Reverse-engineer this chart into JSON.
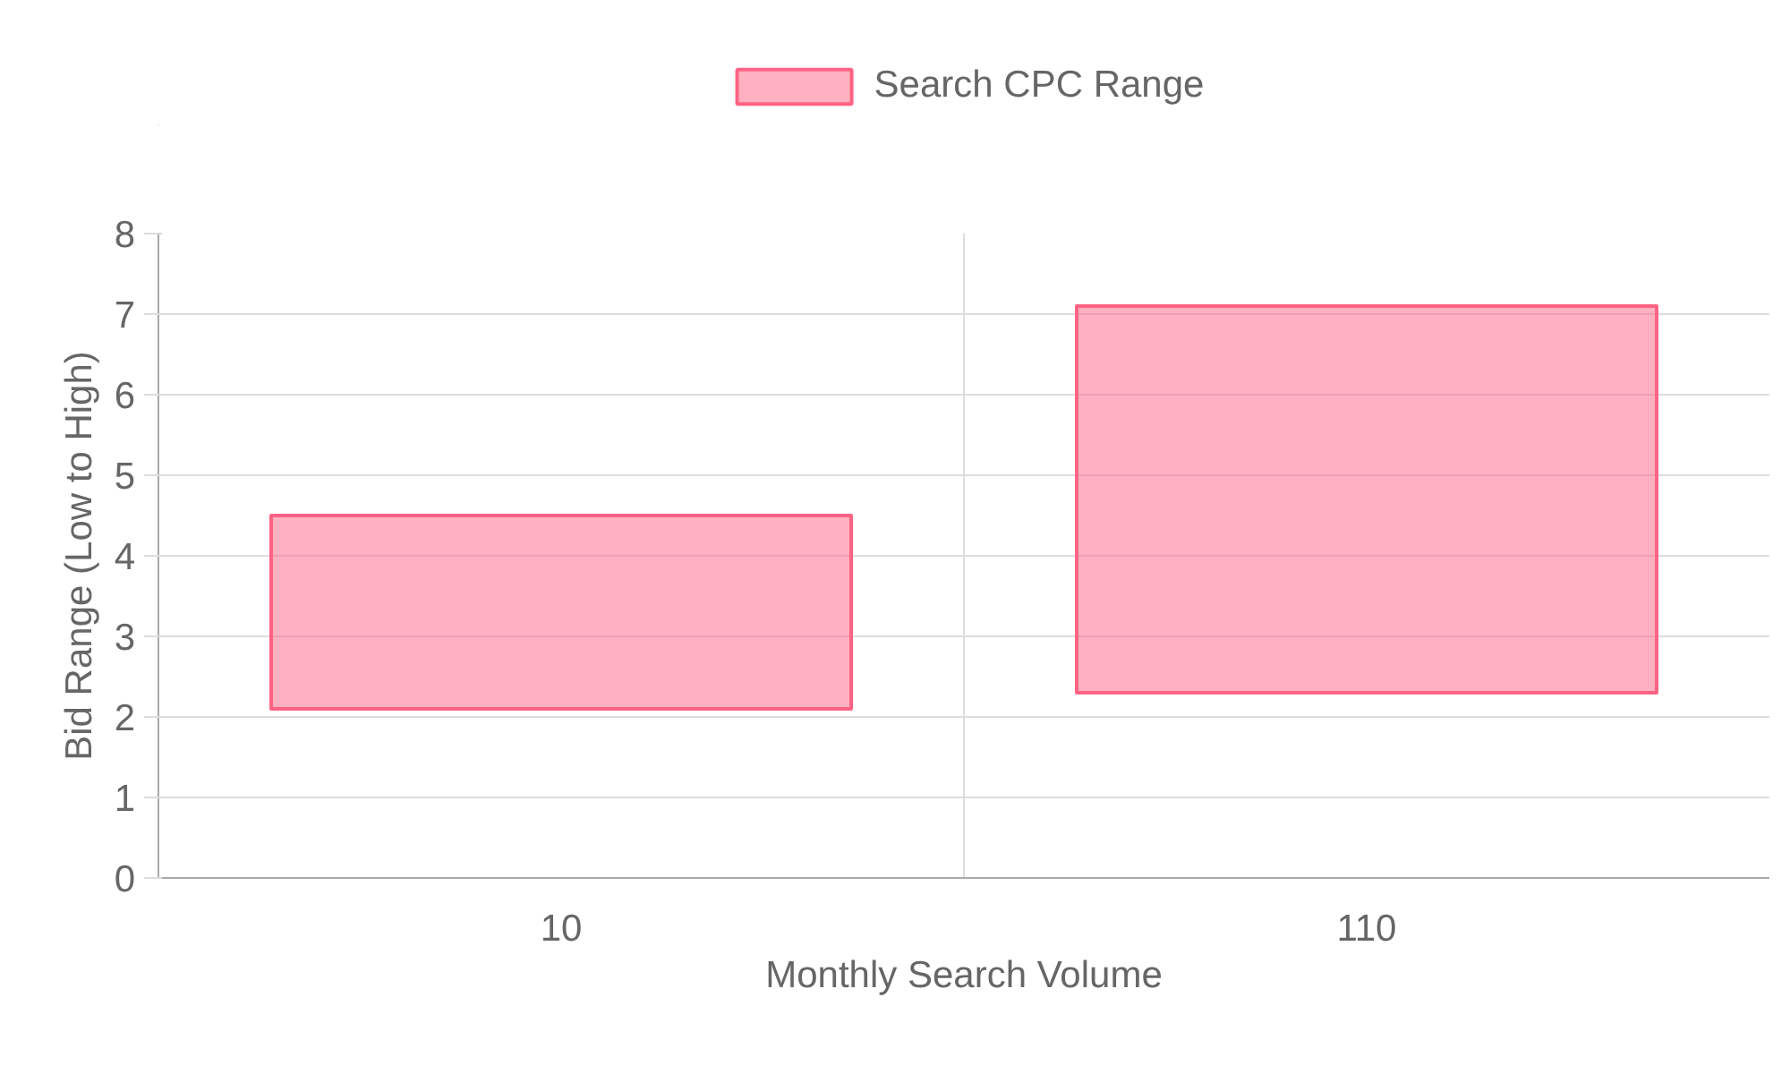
{
  "chart_data": {
    "type": "bar",
    "xlabel": "Monthly Search Volume",
    "ylabel": "Bid Range (Low to High)",
    "categories": [
      "10",
      "110"
    ],
    "series": [
      {
        "name": "Search CPC Range",
        "color": "#ff6384",
        "base": [
          2.1,
          2.3
        ],
        "values": [
          2.4,
          4.8
        ]
      }
    ],
    "ylim": [
      0,
      8
    ],
    "yticks": [
      0,
      1,
      2,
      3,
      4,
      5,
      6,
      7,
      8
    ],
    "grid": true,
    "legend": "top"
  }
}
